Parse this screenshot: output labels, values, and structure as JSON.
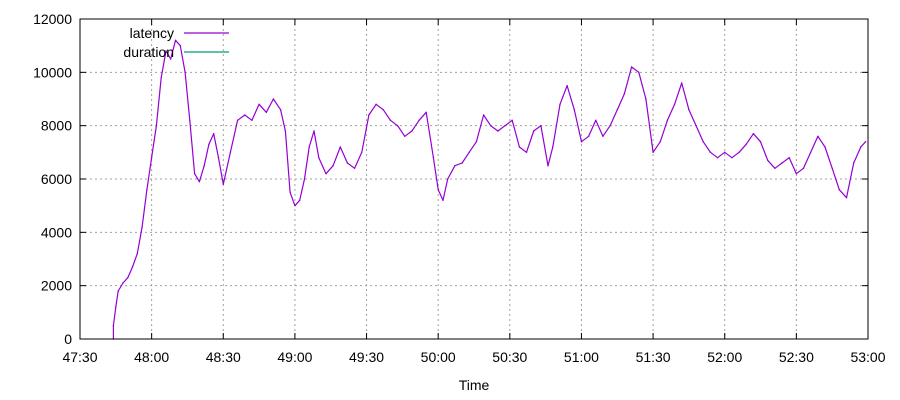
{
  "chart_data": {
    "type": "line",
    "title": "",
    "xlabel": "Time",
    "ylabel": "",
    "xlim": [
      "47:30",
      "53:00"
    ],
    "ylim": [
      0,
      12000
    ],
    "grid": true,
    "legend_position": "top-left",
    "x_ticks": [
      "47:30",
      "48:00",
      "48:30",
      "49:00",
      "49:30",
      "50:00",
      "50:30",
      "51:00",
      "51:30",
      "52:00",
      "52:30",
      "53:00"
    ],
    "y_ticks": [
      0,
      2000,
      4000,
      6000,
      8000,
      10000,
      12000
    ],
    "series": [
      {
        "name": "latency",
        "color": "#9400d3",
        "points": [
          [
            "47:44",
            0
          ],
          [
            "47:44",
            500
          ],
          [
            "47:45",
            1200
          ],
          [
            "47:46",
            1800
          ],
          [
            "47:48",
            2100
          ],
          [
            "47:50",
            2300
          ],
          [
            "47:52",
            2700
          ],
          [
            "47:54",
            3200
          ],
          [
            "47:56",
            4200
          ],
          [
            "47:58",
            5600
          ],
          [
            "48:00",
            6800
          ],
          [
            "48:02",
            8000
          ],
          [
            "48:04",
            9800
          ],
          [
            "48:06",
            10800
          ],
          [
            "48:08",
            10500
          ],
          [
            "48:10",
            11200
          ],
          [
            "48:12",
            11000
          ],
          [
            "48:14",
            10000
          ],
          [
            "48:16",
            8200
          ],
          [
            "48:18",
            6200
          ],
          [
            "48:20",
            5900
          ],
          [
            "48:22",
            6500
          ],
          [
            "48:24",
            7300
          ],
          [
            "48:26",
            7700
          ],
          [
            "48:28",
            6800
          ],
          [
            "48:30",
            5800
          ],
          [
            "48:33",
            7000
          ],
          [
            "48:36",
            8200
          ],
          [
            "48:39",
            8400
          ],
          [
            "48:42",
            8200
          ],
          [
            "48:45",
            8800
          ],
          [
            "48:48",
            8500
          ],
          [
            "48:51",
            9000
          ],
          [
            "48:54",
            8600
          ],
          [
            "48:56",
            7800
          ],
          [
            "48:58",
            5500
          ],
          [
            "49:00",
            5000
          ],
          [
            "49:02",
            5200
          ],
          [
            "49:04",
            6000
          ],
          [
            "49:06",
            7200
          ],
          [
            "49:08",
            7800
          ],
          [
            "49:10",
            6800
          ],
          [
            "49:13",
            6200
          ],
          [
            "49:16",
            6500
          ],
          [
            "49:19",
            7200
          ],
          [
            "49:22",
            6600
          ],
          [
            "49:25",
            6400
          ],
          [
            "49:28",
            7000
          ],
          [
            "49:31",
            8400
          ],
          [
            "49:34",
            8800
          ],
          [
            "49:37",
            8600
          ],
          [
            "49:40",
            8200
          ],
          [
            "49:43",
            8000
          ],
          [
            "49:46",
            7600
          ],
          [
            "49:49",
            7800
          ],
          [
            "49:52",
            8200
          ],
          [
            "49:55",
            8500
          ],
          [
            "49:58",
            6800
          ],
          [
            "50:00",
            5600
          ],
          [
            "50:02",
            5200
          ],
          [
            "50:04",
            6000
          ],
          [
            "50:07",
            6500
          ],
          [
            "50:10",
            6600
          ],
          [
            "50:13",
            7000
          ],
          [
            "50:16",
            7400
          ],
          [
            "50:19",
            8400
          ],
          [
            "50:22",
            8000
          ],
          [
            "50:25",
            7800
          ],
          [
            "50:28",
            8000
          ],
          [
            "50:31",
            8200
          ],
          [
            "50:34",
            7200
          ],
          [
            "50:37",
            7000
          ],
          [
            "50:40",
            7800
          ],
          [
            "50:43",
            8000
          ],
          [
            "50:46",
            6500
          ],
          [
            "50:48",
            7200
          ],
          [
            "50:51",
            8800
          ],
          [
            "50:54",
            9500
          ],
          [
            "50:57",
            8600
          ],
          [
            "51:00",
            7400
          ],
          [
            "51:03",
            7600
          ],
          [
            "51:06",
            8200
          ],
          [
            "51:09",
            7600
          ],
          [
            "51:12",
            8000
          ],
          [
            "51:15",
            8600
          ],
          [
            "51:18",
            9200
          ],
          [
            "51:21",
            10200
          ],
          [
            "51:24",
            10000
          ],
          [
            "51:27",
            9000
          ],
          [
            "51:30",
            7000
          ],
          [
            "51:33",
            7400
          ],
          [
            "51:36",
            8200
          ],
          [
            "51:39",
            8800
          ],
          [
            "51:42",
            9600
          ],
          [
            "51:45",
            8600
          ],
          [
            "51:48",
            8000
          ],
          [
            "51:51",
            7400
          ],
          [
            "51:54",
            7000
          ],
          [
            "51:57",
            6800
          ],
          [
            "52:00",
            7000
          ],
          [
            "52:03",
            6800
          ],
          [
            "52:06",
            7000
          ],
          [
            "52:09",
            7300
          ],
          [
            "52:12",
            7700
          ],
          [
            "52:15",
            7400
          ],
          [
            "52:18",
            6700
          ],
          [
            "52:21",
            6400
          ],
          [
            "52:24",
            6600
          ],
          [
            "52:27",
            6800
          ],
          [
            "52:30",
            6200
          ],
          [
            "52:33",
            6400
          ],
          [
            "52:36",
            7000
          ],
          [
            "52:39",
            7600
          ],
          [
            "52:42",
            7200
          ],
          [
            "52:45",
            6400
          ],
          [
            "52:48",
            5600
          ],
          [
            "52:51",
            5300
          ],
          [
            "52:54",
            6600
          ],
          [
            "52:57",
            7200
          ],
          [
            "52:59",
            7400
          ]
        ]
      },
      {
        "name": "duration",
        "color": "#009e73",
        "points": []
      }
    ]
  }
}
